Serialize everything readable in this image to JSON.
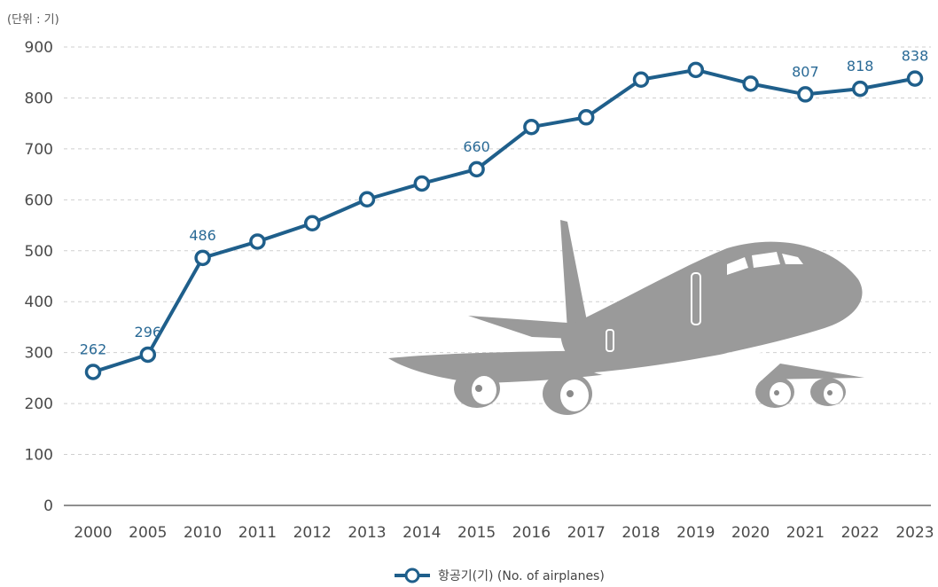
{
  "chart_data": {
    "type": "line",
    "unit_label": "(단위 : 기)",
    "categories": [
      "2000",
      "2005",
      "2010",
      "2011",
      "2012",
      "2013",
      "2014",
      "2015",
      "2016",
      "2017",
      "2018",
      "2019",
      "2020",
      "2021",
      "2022",
      "2023"
    ],
    "series": [
      {
        "name": "항공기(기) (No. of airplanes)",
        "values": [
          262,
          296,
          486,
          518,
          554,
          601,
          632,
          660,
          743,
          762,
          836,
          855,
          828,
          807,
          818,
          838
        ],
        "color": "#1f5f8b"
      }
    ],
    "data_labels": [
      {
        "index": 0,
        "text": "262"
      },
      {
        "index": 1,
        "text": "296"
      },
      {
        "index": 2,
        "text": "486"
      },
      {
        "index": 7,
        "text": "660"
      },
      {
        "index": 13,
        "text": "807"
      },
      {
        "index": 14,
        "text": "818"
      },
      {
        "index": 15,
        "text": "838"
      }
    ],
    "yticks": [
      "0",
      "100",
      "200",
      "300",
      "400",
      "500",
      "600",
      "700",
      "800",
      "900"
    ],
    "ylim": [
      0,
      900
    ],
    "grid": true,
    "legend_position": "bottom",
    "label_color": "#2a6a96",
    "decoration": "airplane-icon"
  }
}
